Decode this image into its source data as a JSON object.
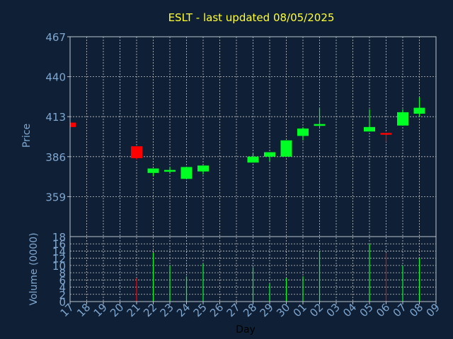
{
  "chart_data": {
    "type": "candlestick",
    "title": "ESLT - last updated 08/05/2025",
    "xlabel": "Day",
    "price_label": "Price",
    "volume_label": "Volume (0000)",
    "days": [
      "17",
      "18",
      "19",
      "20",
      "21",
      "22",
      "23",
      "24",
      "25",
      "26",
      "27",
      "28",
      "29",
      "30",
      "01",
      "02",
      "03",
      "04",
      "05",
      "06",
      "07",
      "08",
      "09"
    ],
    "price_ticks": [
      "467",
      "440",
      "413",
      "386",
      "359"
    ],
    "price_tick_values": [
      467,
      440,
      413,
      386,
      359
    ],
    "price_ylim": [
      332,
      467
    ],
    "volume_ticks": [
      "18",
      "16",
      "14",
      "12",
      "10",
      "8",
      "6",
      "4",
      "2",
      "0"
    ],
    "volume_tick_values": [
      18,
      16,
      14,
      12,
      10,
      8,
      6,
      4,
      2,
      0
    ],
    "volume_ylim": [
      0,
      18
    ],
    "candles": [
      {
        "day": "17",
        "open": 409,
        "close": 406,
        "high": 409,
        "low": 406,
        "volume": 0
      },
      {
        "day": "21",
        "open": 393,
        "close": 385,
        "high": 393,
        "low": 384,
        "volume": 6.5
      },
      {
        "day": "22",
        "open": 375,
        "close": 378,
        "high": 378,
        "low": 373,
        "volume": 13.5
      },
      {
        "day": "23",
        "open": 377,
        "close": 377,
        "high": 379,
        "low": 375,
        "volume": 10
      },
      {
        "day": "24",
        "open": 371,
        "close": 379,
        "high": 379,
        "low": 371,
        "volume": 7
      },
      {
        "day": "25",
        "open": 376,
        "close": 380,
        "high": 380,
        "low": 374,
        "volume": 10.5
      },
      {
        "day": "28",
        "open": 382,
        "close": 386,
        "high": 388,
        "low": 382,
        "volume": 9.5
      },
      {
        "day": "29",
        "open": 386,
        "close": 389,
        "high": 389,
        "low": 383,
        "volume": 5
      },
      {
        "day": "30",
        "open": 386,
        "close": 397,
        "high": 397,
        "low": 386,
        "volume": 6.5
      },
      {
        "day": "01",
        "open": 400,
        "close": 405,
        "high": 406,
        "low": 397,
        "volume": 7
      },
      {
        "day": "02",
        "open": 407,
        "close": 408,
        "high": 419,
        "low": 406,
        "volume": 14
      },
      {
        "day": "05",
        "open": 403,
        "close": 406,
        "high": 418,
        "low": 403,
        "volume": 16
      },
      {
        "day": "06",
        "open": 402,
        "close": 401,
        "high": 402,
        "low": 396,
        "volume": 13.5
      },
      {
        "day": "07",
        "open": 407,
        "close": 416,
        "high": 418,
        "low": 407,
        "volume": 10
      },
      {
        "day": "08",
        "open": 415,
        "close": 419,
        "high": 426,
        "low": 413,
        "volume": 12
      }
    ],
    "colors": {
      "background": "#0f1f35",
      "up": "#00ff22",
      "down": "#ff0000",
      "title": "#ffff33",
      "tick": "#7fa7d0",
      "grid": "#c8c8c8",
      "day_label": "#000000"
    },
    "grid": true
  }
}
